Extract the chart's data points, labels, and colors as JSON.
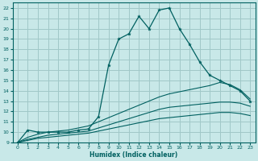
{
  "xlabel": "Humidex (Indice chaleur)",
  "bg_color": "#c8e8e8",
  "grid_color": "#a0c8c8",
  "line_color": "#006060",
  "xlim": [
    -0.5,
    23.5
  ],
  "ylim": [
    9,
    22.5
  ],
  "xticks": [
    0,
    1,
    2,
    3,
    4,
    5,
    6,
    7,
    8,
    9,
    10,
    11,
    12,
    13,
    14,
    15,
    16,
    17,
    18,
    19,
    20,
    21,
    22,
    23
  ],
  "yticks": [
    9,
    10,
    11,
    12,
    13,
    14,
    15,
    16,
    17,
    18,
    19,
    20,
    21,
    22
  ],
  "line1_x": [
    0,
    1,
    2,
    3,
    4,
    5,
    6,
    7,
    8,
    9,
    10,
    11,
    12,
    13,
    14,
    15,
    16,
    17,
    18,
    19,
    20,
    21,
    22,
    23
  ],
  "line1_y": [
    9,
    10.2,
    10,
    10,
    10,
    10,
    10.2,
    10.3,
    11.5,
    16.5,
    19,
    19.5,
    21.2,
    20,
    21.8,
    22,
    20,
    18.5,
    16.8,
    15.5,
    15,
    14.5,
    14,
    13
  ],
  "line2_x": [
    0,
    1,
    2,
    3,
    4,
    5,
    6,
    7,
    8,
    9,
    10,
    11,
    12,
    13,
    14,
    15,
    16,
    17,
    18,
    19,
    20,
    21,
    22,
    23
  ],
  "line2_y": [
    9,
    9.5,
    9.8,
    10,
    10.1,
    10.2,
    10.4,
    10.6,
    11.0,
    11.4,
    11.8,
    12.2,
    12.6,
    13.0,
    13.4,
    13.7,
    13.9,
    14.1,
    14.3,
    14.5,
    14.8,
    14.6,
    14.1,
    13.2
  ],
  "line3_x": [
    0,
    1,
    2,
    3,
    4,
    5,
    6,
    7,
    8,
    9,
    10,
    11,
    12,
    13,
    14,
    15,
    16,
    17,
    18,
    19,
    20,
    21,
    22,
    23
  ],
  "line3_y": [
    9,
    9.3,
    9.5,
    9.7,
    9.8,
    9.9,
    10.0,
    10.1,
    10.4,
    10.7,
    11.0,
    11.3,
    11.6,
    11.9,
    12.2,
    12.4,
    12.5,
    12.6,
    12.7,
    12.8,
    12.9,
    12.9,
    12.8,
    12.5
  ],
  "line4_x": [
    0,
    1,
    2,
    3,
    4,
    5,
    6,
    7,
    8,
    9,
    10,
    11,
    12,
    13,
    14,
    15,
    16,
    17,
    18,
    19,
    20,
    21,
    22,
    23
  ],
  "line4_y": [
    9,
    9.2,
    9.4,
    9.5,
    9.6,
    9.7,
    9.8,
    9.9,
    10.1,
    10.3,
    10.5,
    10.7,
    10.9,
    11.1,
    11.3,
    11.4,
    11.5,
    11.6,
    11.7,
    11.8,
    11.9,
    11.9,
    11.8,
    11.6
  ]
}
